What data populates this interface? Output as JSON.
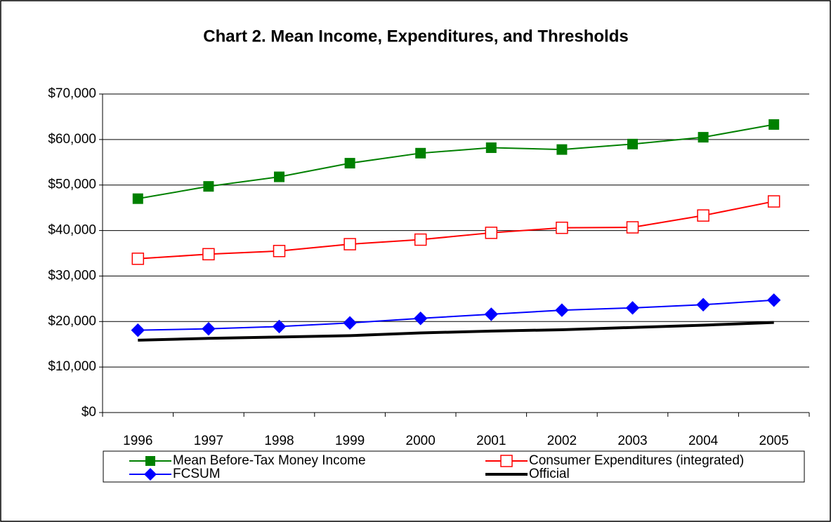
{
  "chart_data": {
    "type": "line",
    "title": "Chart 2. Mean Income, Expenditures, and Thresholds",
    "categories": [
      "1996",
      "1997",
      "1998",
      "1999",
      "2000",
      "2001",
      "2002",
      "2003",
      "2004",
      "2005"
    ],
    "series": [
      {
        "name": "Mean Before-Tax Money Income",
        "color": "#008000",
        "marker": "square-filled",
        "values": [
          47000,
          49700,
          51800,
          54800,
          57000,
          58200,
          57800,
          59000,
          60500,
          63300
        ]
      },
      {
        "name": "Consumer Expenditures (integrated)",
        "color": "#ff0000",
        "marker": "square-open",
        "values": [
          33800,
          34800,
          35500,
          37000,
          38000,
          39500,
          40600,
          40700,
          43300,
          46400
        ]
      },
      {
        "name": "FCSUM",
        "color": "#0000ff",
        "marker": "diamond",
        "values": [
          18100,
          18400,
          18900,
          19700,
          20700,
          21600,
          22500,
          23000,
          23700,
          24700
        ]
      },
      {
        "name": "Official",
        "color": "#000000",
        "marker": "none",
        "values": [
          15900,
          16300,
          16600,
          16900,
          17500,
          17900,
          18200,
          18700,
          19200,
          19800
        ]
      }
    ],
    "ylim": [
      0,
      70000
    ],
    "yticks": [
      {
        "value": 0,
        "label": "$0"
      },
      {
        "value": 10000,
        "label": "$10,000"
      },
      {
        "value": 20000,
        "label": "$20,000"
      },
      {
        "value": 30000,
        "label": "$30,000"
      },
      {
        "value": 40000,
        "label": "$40,000"
      },
      {
        "value": 50000,
        "label": "$50,000"
      },
      {
        "value": 60000,
        "label": "$60,000"
      },
      {
        "value": 70000,
        "label": "$70,000"
      }
    ],
    "grid": true,
    "legend": "bottom"
  }
}
